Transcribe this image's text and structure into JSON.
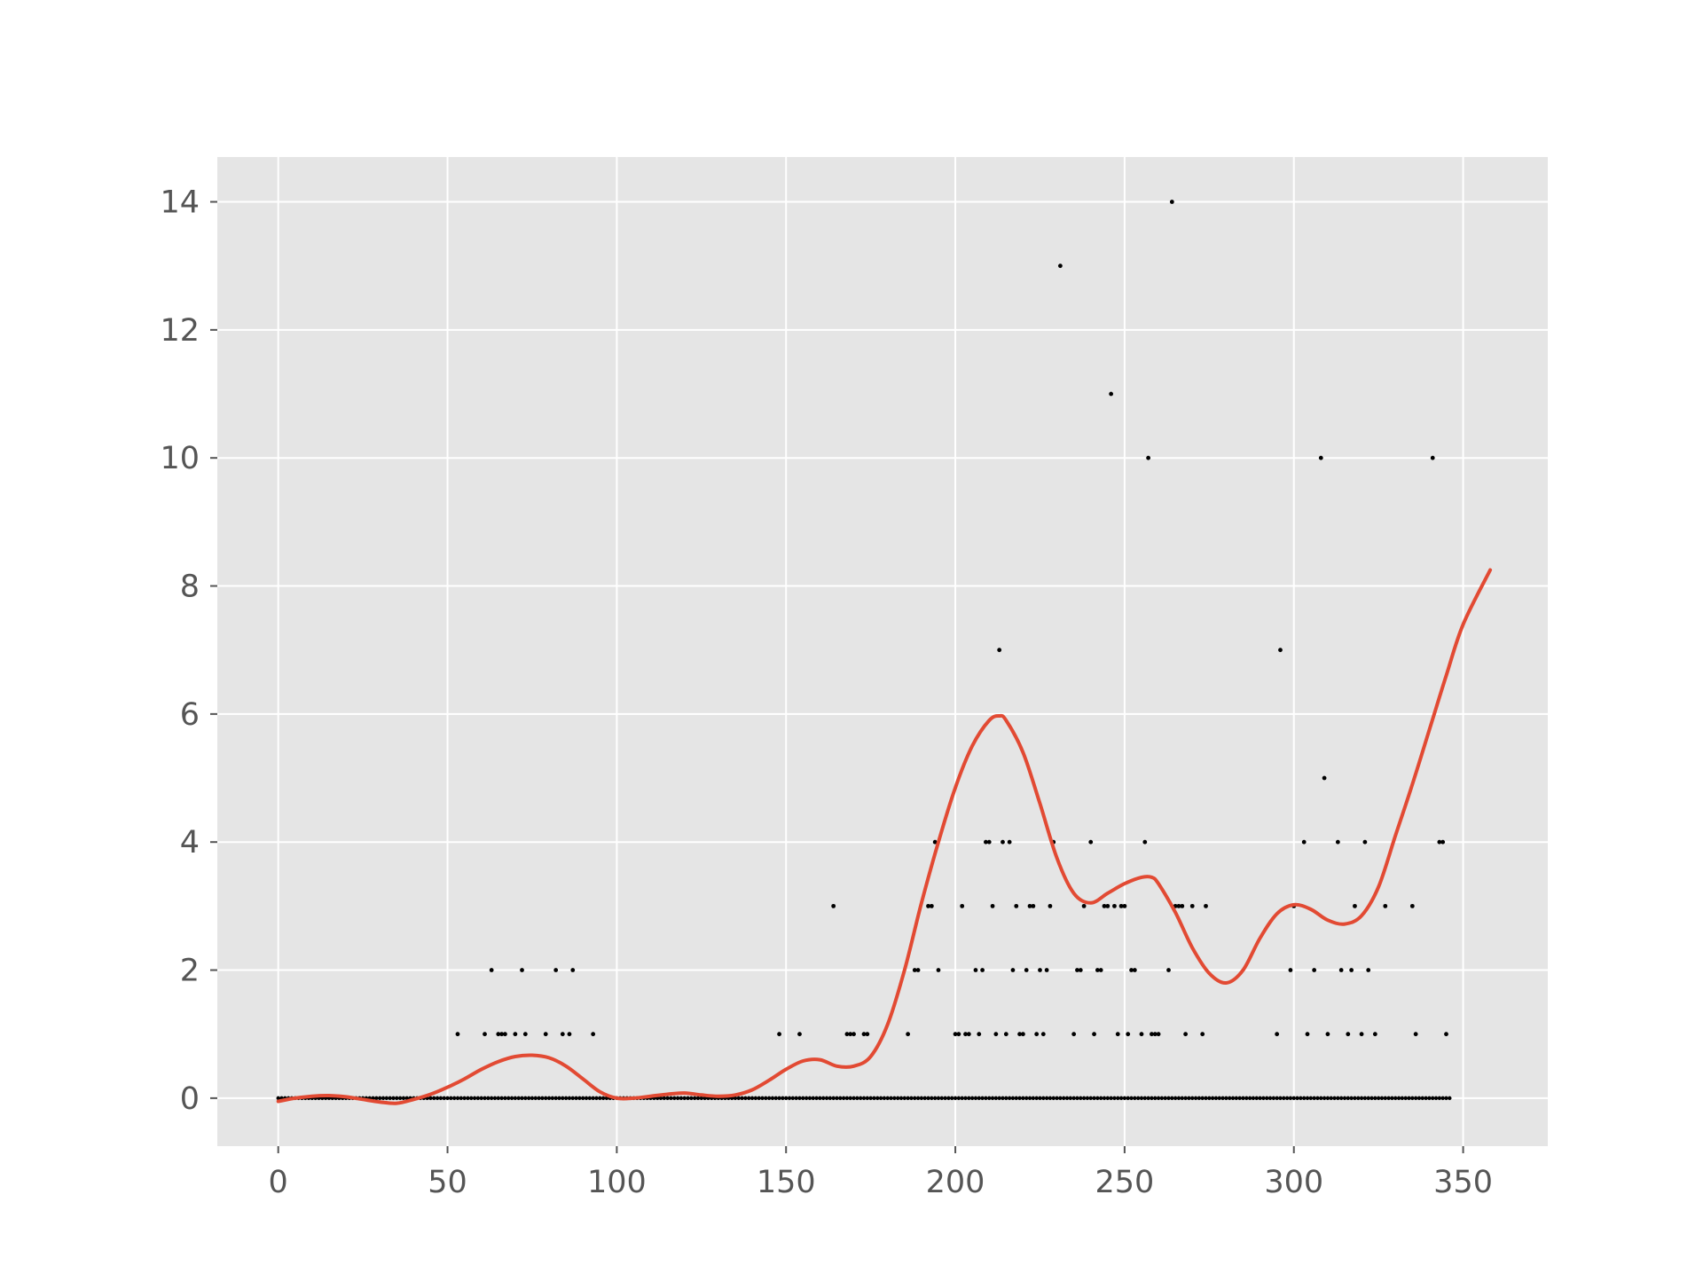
{
  "chart_data": {
    "type": "scatter",
    "title": "",
    "xlabel": "",
    "ylabel": "",
    "xlim": [
      -18,
      375
    ],
    "ylim": [
      -0.75,
      14.7
    ],
    "grid": true,
    "legend": "none",
    "colors": {
      "plot_background": "#e5e5e5",
      "grid": "#ffffff",
      "points": "#000000",
      "line": "#e24a33",
      "tick_label": "#555555",
      "figure_background": "#ffffff"
    },
    "x_ticks": [
      0,
      50,
      100,
      150,
      200,
      250,
      300,
      350
    ],
    "x_tick_labels": [
      "0",
      "50",
      "100",
      "150",
      "200",
      "250",
      "300",
      "350"
    ],
    "y_ticks": [
      0,
      2,
      4,
      6,
      8,
      10,
      12,
      14
    ],
    "y_tick_labels": [
      "0",
      "2",
      "4",
      "6",
      "8",
      "10",
      "12",
      "14"
    ],
    "series": [
      {
        "kind": "points",
        "x": [
          53,
          61,
          63,
          65,
          66,
          67,
          70,
          72,
          73,
          79,
          82,
          84,
          86,
          87,
          93,
          148,
          154,
          164,
          168,
          169,
          170,
          173,
          174,
          186,
          188,
          189,
          192,
          193,
          194,
          195,
          200,
          201,
          202,
          203,
          204,
          206,
          207,
          208,
          209,
          210,
          211,
          212,
          213,
          214,
          215,
          216,
          217,
          218,
          219,
          220,
          221,
          222,
          223,
          224,
          225,
          226,
          227,
          228,
          229,
          231,
          235,
          236,
          237,
          238,
          240,
          241,
          242,
          243,
          244,
          245,
          246,
          247,
          248,
          249,
          250,
          251,
          252,
          253,
          255,
          256,
          257,
          258,
          259,
          260,
          263,
          264,
          265,
          266,
          267,
          268,
          270,
          273,
          274,
          295,
          296,
          299,
          300,
          303,
          304,
          306,
          308,
          309,
          310,
          313,
          314,
          316,
          317,
          318,
          320,
          321,
          322,
          324,
          327,
          335,
          336,
          341,
          343,
          344,
          345
        ],
        "y": [
          1,
          1,
          2,
          1,
          1,
          1,
          1,
          2,
          1,
          1,
          2,
          1,
          1,
          2,
          1,
          1,
          1,
          3,
          1,
          1,
          1,
          1,
          1,
          1,
          2,
          2,
          3,
          3,
          4,
          2,
          1,
          1,
          3,
          1,
          1,
          2,
          1,
          2,
          4,
          4,
          3,
          1,
          7,
          4,
          1,
          4,
          2,
          3,
          1,
          1,
          2,
          3,
          3,
          1,
          2,
          1,
          2,
          3,
          4,
          13,
          1,
          2,
          2,
          3,
          4,
          1,
          2,
          2,
          3,
          3,
          11,
          3,
          1,
          3,
          3,
          1,
          2,
          2,
          1,
          4,
          10,
          1,
          1,
          1,
          2,
          14,
          3,
          3,
          3,
          1,
          3,
          1,
          3,
          1,
          7,
          2,
          3,
          4,
          1,
          2,
          10,
          5,
          1,
          4,
          2,
          1,
          2,
          3,
          1,
          4,
          2,
          1,
          3,
          3,
          1,
          10,
          4,
          4,
          1
        ]
      },
      {
        "kind": "points_at_zero",
        "x_start": 0,
        "x_end": 346,
        "y": 0
      },
      {
        "kind": "smooth_line",
        "x": [
          0,
          5,
          10,
          15,
          20,
          25,
          30,
          35,
          40,
          45,
          50,
          55,
          60,
          65,
          70,
          75,
          80,
          85,
          90,
          95,
          100,
          105,
          110,
          115,
          120,
          125,
          130,
          135,
          140,
          145,
          150,
          155,
          160,
          165,
          170,
          175,
          180,
          185,
          190,
          195,
          200,
          205,
          210,
          213,
          215,
          220,
          225,
          230,
          235,
          240,
          245,
          250,
          255,
          258,
          260,
          265,
          270,
          275,
          280,
          285,
          290,
          295,
          300,
          305,
          310,
          315,
          320,
          325,
          330,
          335,
          340,
          345,
          350,
          358
        ],
        "y": [
          -0.05,
          0.0,
          0.03,
          0.04,
          0.02,
          -0.02,
          -0.06,
          -0.08,
          -0.02,
          0.06,
          0.17,
          0.3,
          0.45,
          0.57,
          0.65,
          0.67,
          0.63,
          0.5,
          0.3,
          0.1,
          0.0,
          0.0,
          0.03,
          0.06,
          0.08,
          0.05,
          0.03,
          0.05,
          0.13,
          0.28,
          0.45,
          0.58,
          0.6,
          0.5,
          0.5,
          0.65,
          1.15,
          2.0,
          3.05,
          4.0,
          4.85,
          5.5,
          5.9,
          5.97,
          5.9,
          5.4,
          4.6,
          3.75,
          3.2,
          3.05,
          3.2,
          3.35,
          3.45,
          3.45,
          3.35,
          2.9,
          2.35,
          1.95,
          1.8,
          2.0,
          2.5,
          2.88,
          3.02,
          2.95,
          2.78,
          2.72,
          2.85,
          3.3,
          4.1,
          4.9,
          5.75,
          6.6,
          7.4,
          8.25
        ]
      }
    ]
  }
}
